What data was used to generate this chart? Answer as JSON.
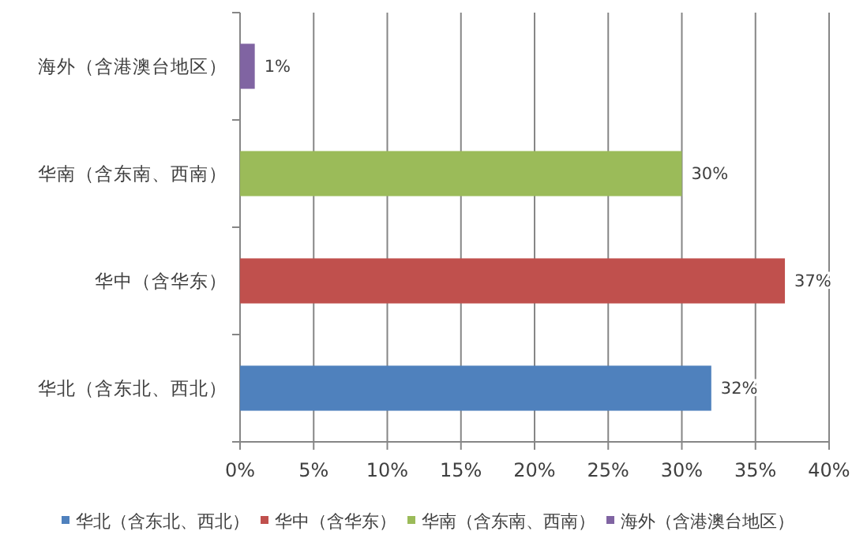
{
  "chart_data": {
    "type": "bar",
    "orientation": "horizontal",
    "stacked": true,
    "categories": [
      "海外（含港澳台地区）",
      "华南（含东南、西南）",
      "华中（含华东）",
      "华北（含东北、西北）"
    ],
    "series": [
      {
        "name": "华北（含东北、西北）",
        "color": "#4f81bd",
        "values": [
          null,
          null,
          null,
          32
        ],
        "value_labels": [
          null,
          null,
          null,
          "32%"
        ]
      },
      {
        "name": "华中（含华东）",
        "color": "#c0504d",
        "values": [
          null,
          null,
          37,
          null
        ],
        "value_labels": [
          null,
          null,
          "37%",
          null
        ]
      },
      {
        "name": "华南（含东南、西南）",
        "color": "#9bbb59",
        "values": [
          null,
          30,
          null,
          null
        ],
        "value_labels": [
          null,
          "30%",
          null,
          null
        ]
      },
      {
        "name": "海外（含港澳台地区）",
        "color": "#8064a2",
        "values": [
          1,
          null,
          null,
          null
        ],
        "value_labels": [
          "1%",
          null,
          null,
          null
        ]
      }
    ],
    "xlim": [
      0,
      40
    ],
    "xticks": [
      {
        "value": 0,
        "label": "0%"
      },
      {
        "value": 5,
        "label": "5%"
      },
      {
        "value": 10,
        "label": "10%"
      },
      {
        "value": 15,
        "label": "15%"
      },
      {
        "value": 20,
        "label": "20%"
      },
      {
        "value": 25,
        "label": "25%"
      },
      {
        "value": 30,
        "label": "30%"
      },
      {
        "value": 35,
        "label": "35%"
      },
      {
        "value": 40,
        "label": "40%"
      }
    ],
    "grid": "x",
    "legend": "bottom"
  }
}
